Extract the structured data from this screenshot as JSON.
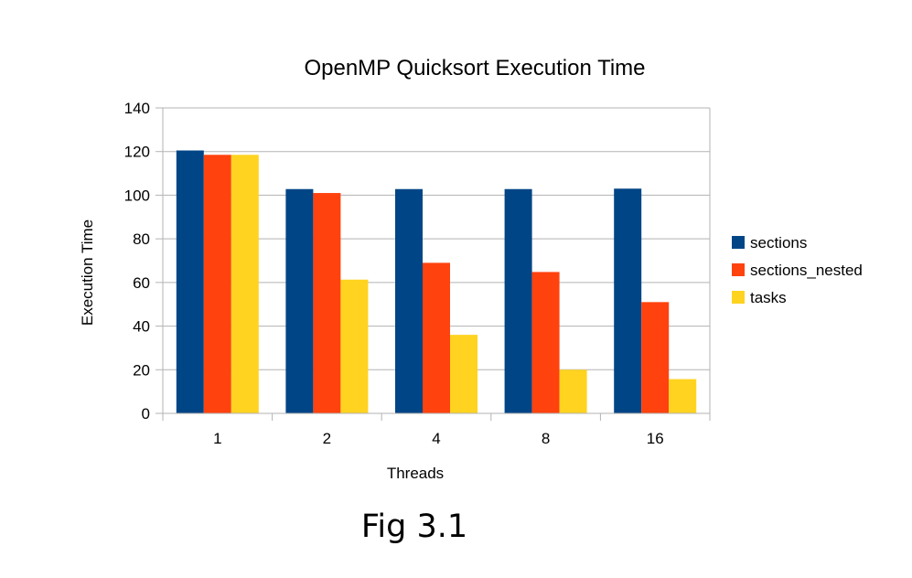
{
  "chart_data": {
    "type": "bar",
    "title": "OpenMP Quicksort Execution Time",
    "xlabel": "Threads",
    "ylabel": "Execution Time",
    "categories": [
      "1",
      "2",
      "4",
      "8",
      "16"
    ],
    "ylim": [
      0,
      140
    ],
    "yticks": [
      0,
      20,
      40,
      60,
      80,
      100,
      120,
      140
    ],
    "grid": true,
    "legend_position": "right",
    "series": [
      {
        "name": "sections",
        "color": "#004586",
        "values": [
          120.5,
          102.8,
          102.8,
          102.8,
          103
        ]
      },
      {
        "name": "sections_nested",
        "color": "#ff420e",
        "values": [
          118.5,
          101,
          69,
          64.8,
          51
        ]
      },
      {
        "name": "tasks",
        "color": "#ffd320",
        "values": [
          118.5,
          61.3,
          36,
          20,
          15.7
        ]
      }
    ]
  },
  "caption": "Fig 3.1"
}
